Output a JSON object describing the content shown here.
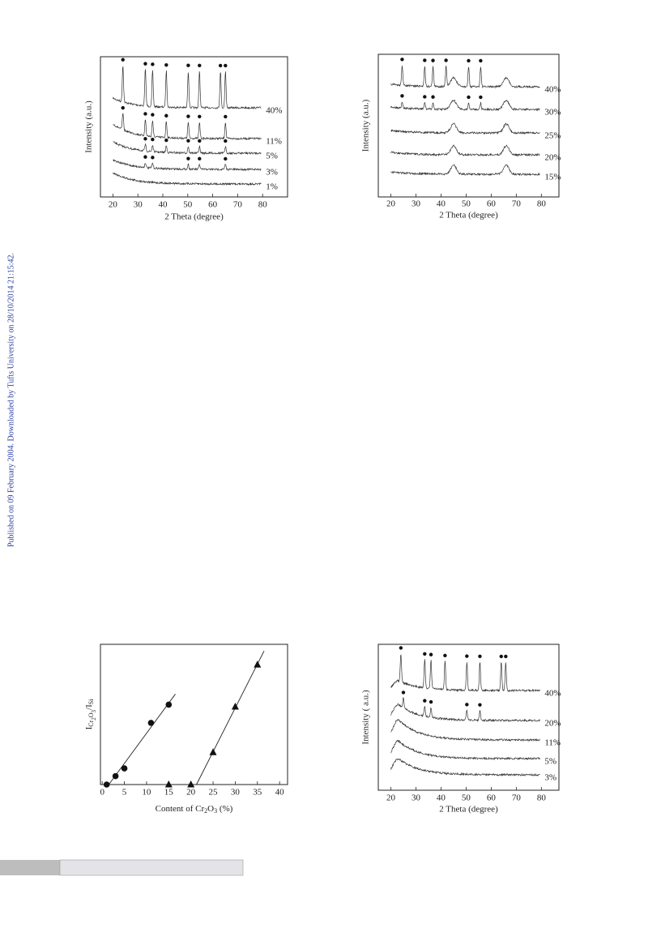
{
  "side_note": "Published on 09 February 2004. Downloaded by Tufts University on 28/10/2014 21:15:42.",
  "chart_data": [
    {
      "type": "xrd",
      "xlabel": "2 Theta (degree)",
      "ylabel": "Intensity (a.u.)",
      "xlim": [
        15,
        90
      ],
      "xticks": [
        20,
        30,
        40,
        50,
        60,
        70,
        80
      ],
      "series": [
        {
          "name": "40%",
          "peaks": [
            24,
            33,
            35.9,
            41.4,
            50.2,
            54.7,
            63.1,
            65.1
          ]
        },
        {
          "name": "11%",
          "peaks": [
            24,
            33,
            35.9,
            41.4,
            50.2,
            54.7,
            65.1
          ]
        },
        {
          "name": "5%",
          "peaks": [
            33,
            35.9,
            41.4,
            50.2,
            54.7,
            65.1
          ]
        },
        {
          "name": "3%",
          "peaks": [
            33,
            35.9,
            50.2,
            54.7,
            65.1
          ]
        },
        {
          "name": "1%",
          "peaks": []
        }
      ]
    },
    {
      "type": "xrd",
      "xlabel": "2 Theta (degree)",
      "ylabel": "Intensity (a.u.)",
      "xlim": [
        15,
        87
      ],
      "xticks": [
        20,
        30,
        40,
        50,
        60,
        70,
        80
      ],
      "series": [
        {
          "name": "40%",
          "peaks": [
            24.5,
            33.5,
            36.8,
            42,
            51,
            55.8
          ],
          "humps": [
            45,
            66
          ]
        },
        {
          "name": "30%",
          "peaks": [
            24.5,
            33.5,
            36.8,
            51,
            55.8
          ],
          "humps": [
            45,
            66
          ]
        },
        {
          "name": "25%",
          "peaks": [],
          "humps": [
            45,
            66
          ]
        },
        {
          "name": "20%",
          "peaks": [],
          "humps": [
            45,
            66
          ]
        },
        {
          "name": "15%",
          "peaks": [],
          "humps": [
            45,
            66
          ]
        }
      ]
    },
    {
      "type": "scatter",
      "xlabel_parts": [
        "Content of Cr",
        "2",
        "O",
        "3",
        " (%)"
      ],
      "ylabel_parts": [
        "I",
        "Cr",
        "2",
        "O",
        "3",
        "/I",
        "Si"
      ],
      "xlim": [
        -0.4,
        41.8
      ],
      "ylim": [
        0,
        1
      ],
      "xticks": [
        0,
        5,
        10,
        15,
        20,
        25,
        30,
        35,
        40
      ],
      "series": [
        {
          "marker": "circle",
          "x": [
            1,
            3,
            5,
            11,
            15
          ],
          "values": [
            0,
            0.06,
            0.115,
            0.44,
            0.57
          ]
        },
        {
          "marker": "triangle",
          "x": [
            15,
            20,
            25,
            30,
            35
          ],
          "values": [
            0,
            0,
            0.23,
            0.555,
            0.855
          ]
        }
      ]
    },
    {
      "type": "xrd",
      "xlabel": "2 Theta (degree)",
      "ylabel": "Intensity ( a.u.)",
      "xlim": [
        15,
        87
      ],
      "xticks": [
        20,
        30,
        40,
        50,
        60,
        70,
        80
      ],
      "series": [
        {
          "name": "40%",
          "peaks": [
            24,
            33.5,
            36,
            41.6,
            50.3,
            55.5,
            64,
            65.8
          ]
        },
        {
          "name": "20%",
          "peaks": [
            25,
            33.5,
            36,
            50.3,
            55.5
          ]
        },
        {
          "name": "11%",
          "peaks": []
        },
        {
          "name": "5%",
          "peaks": []
        },
        {
          "name": "3%",
          "peaks": []
        }
      ]
    }
  ]
}
